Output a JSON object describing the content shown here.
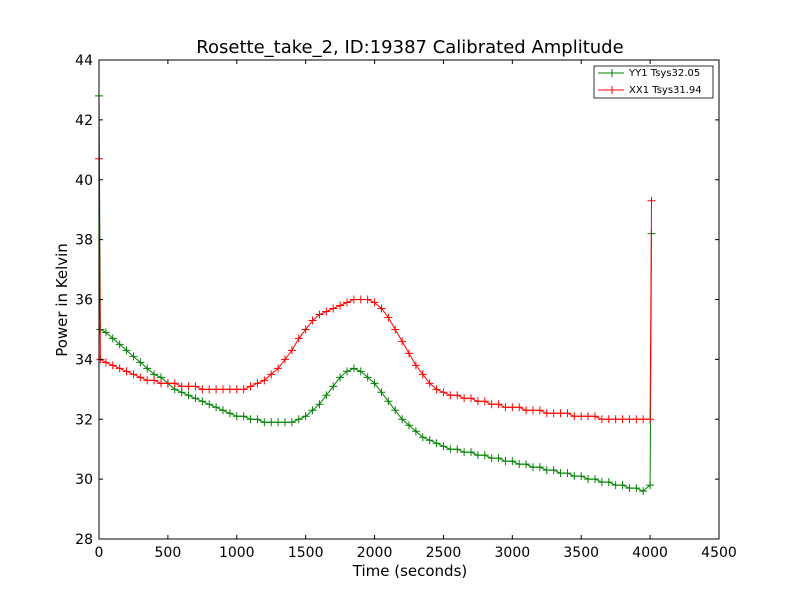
{
  "chart_data": {
    "type": "line",
    "title": "Rosette_take_2, ID:19387 Calibrated Amplitude",
    "xlabel": "Time (seconds)",
    "ylabel": "Power in Kelvin",
    "xlim": [
      0,
      4500
    ],
    "ylim": [
      28,
      44
    ],
    "xticks": [
      0,
      500,
      1000,
      1500,
      2000,
      2500,
      3000,
      3500,
      4000,
      4500
    ],
    "yticks": [
      28,
      30,
      32,
      34,
      36,
      38,
      40,
      42,
      44
    ],
    "grid": false,
    "legend_position": "top-right",
    "marker": "plus",
    "series": [
      {
        "name": "YY1 Tsys32.05",
        "color": "#008000",
        "x": [
          0,
          10,
          50,
          100,
          150,
          200,
          250,
          300,
          350,
          400,
          450,
          500,
          550,
          600,
          650,
          700,
          750,
          800,
          850,
          900,
          950,
          1000,
          1050,
          1100,
          1150,
          1200,
          1250,
          1300,
          1350,
          1400,
          1450,
          1500,
          1550,
          1600,
          1650,
          1700,
          1750,
          1800,
          1850,
          1900,
          1950,
          2000,
          2050,
          2100,
          2150,
          2200,
          2250,
          2300,
          2350,
          2400,
          2450,
          2500,
          2550,
          2600,
          2650,
          2700,
          2750,
          2800,
          2850,
          2900,
          2950,
          3000,
          3050,
          3100,
          3150,
          3200,
          3250,
          3300,
          3350,
          3400,
          3450,
          3500,
          3550,
          3600,
          3650,
          3700,
          3750,
          3800,
          3850,
          3900,
          3950,
          4000,
          4010
        ],
        "y": [
          42.8,
          35.0,
          34.9,
          34.7,
          34.5,
          34.3,
          34.1,
          33.9,
          33.7,
          33.5,
          33.4,
          33.2,
          33.0,
          32.9,
          32.8,
          32.7,
          32.6,
          32.5,
          32.4,
          32.3,
          32.2,
          32.1,
          32.1,
          32.0,
          32.0,
          31.9,
          31.9,
          31.9,
          31.9,
          31.9,
          32.0,
          32.1,
          32.3,
          32.5,
          32.8,
          33.1,
          33.4,
          33.6,
          33.7,
          33.6,
          33.4,
          33.2,
          32.9,
          32.6,
          32.3,
          32.0,
          31.8,
          31.6,
          31.4,
          31.3,
          31.2,
          31.1,
          31.0,
          31.0,
          30.9,
          30.9,
          30.8,
          30.8,
          30.7,
          30.7,
          30.6,
          30.6,
          30.5,
          30.5,
          30.4,
          30.4,
          30.3,
          30.3,
          30.2,
          30.2,
          30.1,
          30.1,
          30.0,
          30.0,
          29.9,
          29.9,
          29.8,
          29.8,
          29.7,
          29.7,
          29.6,
          29.8,
          38.2
        ]
      },
      {
        "name": "XX1 Tsys31.94",
        "color": "#ff0000",
        "x": [
          0,
          10,
          50,
          100,
          150,
          200,
          250,
          300,
          350,
          400,
          450,
          500,
          550,
          600,
          650,
          700,
          750,
          800,
          850,
          900,
          950,
          1000,
          1050,
          1100,
          1150,
          1200,
          1250,
          1300,
          1350,
          1400,
          1450,
          1500,
          1550,
          1600,
          1650,
          1700,
          1750,
          1800,
          1850,
          1900,
          1950,
          2000,
          2050,
          2100,
          2150,
          2200,
          2250,
          2300,
          2350,
          2400,
          2450,
          2500,
          2550,
          2600,
          2650,
          2700,
          2750,
          2800,
          2850,
          2900,
          2950,
          3000,
          3050,
          3100,
          3150,
          3200,
          3250,
          3300,
          3350,
          3400,
          3450,
          3500,
          3550,
          3600,
          3650,
          3700,
          3750,
          3800,
          3850,
          3900,
          3950,
          4000,
          4010
        ],
        "y": [
          40.7,
          34.0,
          33.9,
          33.8,
          33.7,
          33.6,
          33.5,
          33.4,
          33.3,
          33.3,
          33.2,
          33.2,
          33.2,
          33.1,
          33.1,
          33.1,
          33.0,
          33.0,
          33.0,
          33.0,
          33.0,
          33.0,
          33.0,
          33.1,
          33.2,
          33.3,
          33.5,
          33.7,
          34.0,
          34.3,
          34.7,
          35.0,
          35.3,
          35.5,
          35.6,
          35.7,
          35.8,
          35.9,
          36.0,
          36.0,
          36.0,
          35.9,
          35.7,
          35.4,
          35.0,
          34.6,
          34.2,
          33.8,
          33.5,
          33.2,
          33.0,
          32.9,
          32.8,
          32.8,
          32.7,
          32.7,
          32.6,
          32.6,
          32.5,
          32.5,
          32.4,
          32.4,
          32.4,
          32.3,
          32.3,
          32.3,
          32.2,
          32.2,
          32.2,
          32.2,
          32.1,
          32.1,
          32.1,
          32.1,
          32.0,
          32.0,
          32.0,
          32.0,
          32.0,
          32.0,
          32.0,
          32.0,
          39.3
        ]
      }
    ]
  }
}
